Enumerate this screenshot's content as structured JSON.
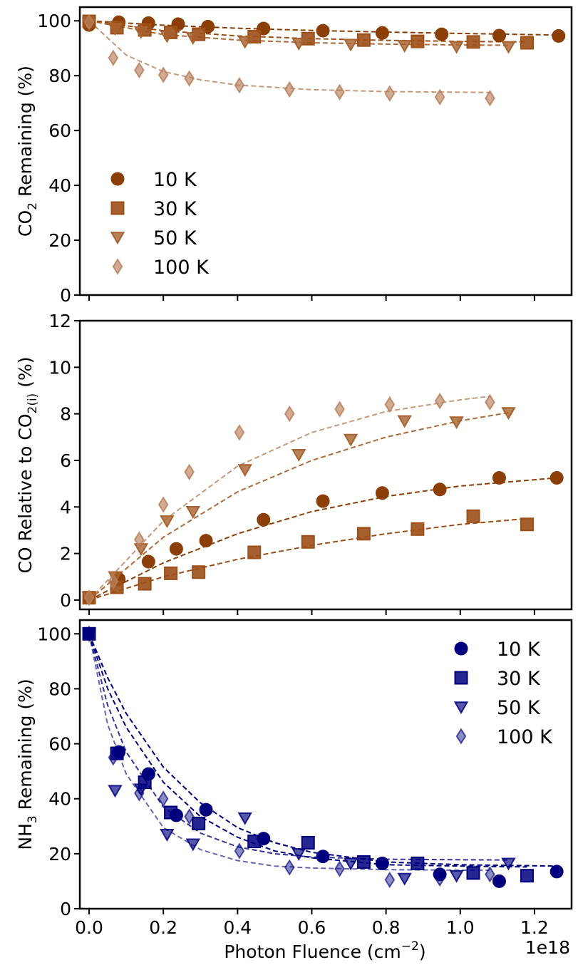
{
  "figure": {
    "shared_xlabel_prefix": "Photon Fluence (cm",
    "shared_xlabel_sup": "−2",
    "shared_xlabel_suffix": ")",
    "x_offset_label": "1e18"
  },
  "chart_data": [
    {
      "type": "scatter",
      "id": "co2",
      "ylabel_main": "CO",
      "ylabel_sub": "2",
      "ylabel_rest": " Remaining (%)",
      "xlim": [
        -0.025,
        1.3
      ],
      "ylim": [
        0,
        105
      ],
      "xticks": [
        0.0,
        0.2,
        0.4,
        0.6,
        0.8,
        1.0,
        1.2
      ],
      "yticks": [
        0,
        20,
        40,
        60,
        80,
        100
      ],
      "x_scale": "1e18",
      "legend_position": "lower-left",
      "series": [
        {
          "name": "10 K",
          "marker": "circle",
          "color": "#8b3f07",
          "opacity": 1.0,
          "x": [
            0.0,
            0.08,
            0.16,
            0.24,
            0.32,
            0.47,
            0.63,
            0.79,
            0.95,
            1.105,
            1.265
          ],
          "y": [
            98.5,
            99.5,
            99.2,
            98.8,
            97.9,
            97.2,
            96.4,
            95.6,
            95.1,
            94.6,
            94.5
          ],
          "fit": [
            [
              0.0,
              100.0
            ],
            [
              0.2,
              98.4
            ],
            [
              0.4,
              97.3
            ],
            [
              0.6,
              96.5
            ],
            [
              0.8,
              95.9
            ],
            [
              1.0,
              95.4
            ],
            [
              1.265,
              94.8
            ]
          ]
        },
        {
          "name": "30 K",
          "marker": "square",
          "color": "#9c4f18",
          "opacity": 0.9,
          "x": [
            0.0,
            0.075,
            0.15,
            0.22,
            0.295,
            0.445,
            0.59,
            0.74,
            0.885,
            1.035,
            1.18
          ],
          "y": [
            99.8,
            97.5,
            96.7,
            95.8,
            95.1,
            94.2,
            93.5,
            93.0,
            92.5,
            92.3,
            92.0
          ],
          "fit": [
            [
              0.0,
              100.0
            ],
            [
              0.2,
              96.4
            ],
            [
              0.4,
              94.5
            ],
            [
              0.6,
              93.5
            ],
            [
              0.8,
              92.9
            ],
            [
              1.0,
              92.5
            ],
            [
              1.18,
              92.3
            ]
          ]
        },
        {
          "name": "50 K",
          "marker": "triangle-down",
          "color": "#a8622e",
          "opacity": 0.8,
          "x": [
            0.0,
            0.07,
            0.14,
            0.21,
            0.28,
            0.42,
            0.565,
            0.705,
            0.85,
            0.99,
            1.13
          ],
          "y": [
            99.0,
            97.2,
            96.0,
            94.5,
            93.8,
            92.4,
            91.8,
            91.4,
            91.0,
            90.6,
            90.6
          ],
          "fit": [
            [
              0.0,
              100.0
            ],
            [
              0.2,
              95.0
            ],
            [
              0.4,
              93.0
            ],
            [
              0.6,
              92.0
            ],
            [
              0.8,
              91.5
            ],
            [
              1.0,
              91.2
            ],
            [
              1.13,
              91.1
            ]
          ]
        },
        {
          "name": "100 K",
          "marker": "diamond",
          "color": "#b87f5a",
          "opacity": 0.65,
          "x": [
            0.0,
            0.065,
            0.135,
            0.2,
            0.27,
            0.405,
            0.54,
            0.675,
            0.81,
            0.945,
            1.08
          ],
          "y": [
            99.5,
            86.5,
            82.0,
            80.3,
            79.0,
            76.5,
            75.0,
            74.0,
            73.5,
            72.2,
            71.8
          ],
          "fit": [
            [
              0.0,
              100.0
            ],
            [
              0.1,
              87.5
            ],
            [
              0.2,
              81.5
            ],
            [
              0.3,
              78.5
            ],
            [
              0.4,
              76.6
            ],
            [
              0.6,
              74.9
            ],
            [
              0.8,
              74.2
            ],
            [
              1.08,
              73.9
            ]
          ]
        }
      ]
    },
    {
      "type": "scatter",
      "id": "co",
      "ylabel_main": "CO Relative to CO",
      "ylabel_sub": "2(i)",
      "ylabel_rest": " (%)",
      "xlim": [
        -0.025,
        1.3
      ],
      "ylim": [
        -0.4,
        12
      ],
      "xticks": [
        0.0,
        0.2,
        0.4,
        0.6,
        0.8,
        1.0,
        1.2
      ],
      "yticks": [
        0,
        2,
        4,
        6,
        8,
        10,
        12
      ],
      "x_scale": "1e18",
      "legend_position": "none",
      "series": [
        {
          "name": "10 K",
          "marker": "circle",
          "color": "#8b3f07",
          "opacity": 1.0,
          "x": [
            0.0,
            0.08,
            0.16,
            0.235,
            0.315,
            0.47,
            0.63,
            0.79,
            0.945,
            1.105,
            1.26
          ],
          "y": [
            0.1,
            0.9,
            1.65,
            2.2,
            2.55,
            3.45,
            4.25,
            4.6,
            4.75,
            5.25,
            5.25
          ],
          "fit": [
            [
              0.0,
              0.0
            ],
            [
              0.2,
              1.6
            ],
            [
              0.4,
              2.85
            ],
            [
              0.6,
              3.8
            ],
            [
              0.8,
              4.45
            ],
            [
              1.0,
              4.9
            ],
            [
              1.26,
              5.25
            ]
          ]
        },
        {
          "name": "30 K",
          "marker": "square",
          "color": "#9c4f18",
          "opacity": 0.9,
          "x": [
            0.0,
            0.075,
            0.15,
            0.22,
            0.295,
            0.445,
            0.59,
            0.74,
            0.885,
            1.035,
            1.18
          ],
          "y": [
            0.1,
            0.55,
            0.7,
            1.15,
            1.2,
            2.05,
            2.5,
            2.85,
            3.05,
            3.6,
            3.25
          ],
          "fit": [
            [
              0.0,
              0.0
            ],
            [
              0.2,
              1.0
            ],
            [
              0.4,
              1.75
            ],
            [
              0.6,
              2.35
            ],
            [
              0.8,
              2.85
            ],
            [
              1.0,
              3.25
            ],
            [
              1.18,
              3.5
            ]
          ]
        },
        {
          "name": "50 K",
          "marker": "triangle-down",
          "color": "#a8622e",
          "opacity": 0.8,
          "x": [
            0.0,
            0.07,
            0.14,
            0.21,
            0.28,
            0.42,
            0.565,
            0.705,
            0.85,
            0.99,
            1.13
          ],
          "y": [
            0.1,
            1.0,
            2.2,
            3.4,
            3.8,
            5.6,
            6.25,
            6.9,
            7.7,
            7.65,
            8.05
          ],
          "fit": [
            [
              0.0,
              0.0
            ],
            [
              0.2,
              2.7
            ],
            [
              0.4,
              4.65
            ],
            [
              0.6,
              6.0
            ],
            [
              0.8,
              7.0
            ],
            [
              1.0,
              7.7
            ],
            [
              1.13,
              8.05
            ]
          ]
        },
        {
          "name": "100 K",
          "marker": "diamond",
          "color": "#b87f5a",
          "opacity": 0.65,
          "x": [
            0.0,
            0.065,
            0.135,
            0.2,
            0.27,
            0.405,
            0.54,
            0.675,
            0.81,
            0.945,
            1.08
          ],
          "y": [
            0.1,
            0.8,
            2.6,
            4.1,
            5.5,
            7.2,
            8.0,
            8.2,
            8.4,
            8.55,
            8.5
          ],
          "fit": [
            [
              0.0,
              0.0
            ],
            [
              0.2,
              3.4
            ],
            [
              0.4,
              5.75
            ],
            [
              0.6,
              7.2
            ],
            [
              0.8,
              8.1
            ],
            [
              1.0,
              8.6
            ],
            [
              1.08,
              8.75
            ]
          ]
        }
      ]
    },
    {
      "type": "scatter",
      "id": "nh3",
      "ylabel_main": "NH",
      "ylabel_sub": "3",
      "ylabel_rest": " Remaining (%)",
      "xlim": [
        -0.025,
        1.3
      ],
      "ylim": [
        0,
        105
      ],
      "xticks": [
        0.0,
        0.2,
        0.4,
        0.6,
        0.8,
        1.0,
        1.2
      ],
      "yticks": [
        0,
        20,
        40,
        60,
        80,
        100
      ],
      "x_scale": "1e18",
      "legend_position": "upper-right",
      "series": [
        {
          "name": "10 K",
          "marker": "circle",
          "color": "#00007f",
          "opacity": 1.0,
          "x": [
            0.0,
            0.08,
            0.16,
            0.235,
            0.315,
            0.47,
            0.63,
            0.79,
            0.945,
            1.105,
            1.26
          ],
          "y": [
            100,
            57,
            49,
            34,
            36,
            25.5,
            19,
            16.5,
            12.5,
            10,
            13.5
          ],
          "fit": [
            [
              0.0,
              100
            ],
            [
              0.05,
              84
            ],
            [
              0.1,
              71
            ],
            [
              0.2,
              51.5
            ],
            [
              0.3,
              38.5
            ],
            [
              0.4,
              29.5
            ],
            [
              0.5,
              24
            ],
            [
              0.6,
              20.5
            ],
            [
              0.8,
              17
            ],
            [
              1.0,
              16
            ],
            [
              1.26,
              15.5
            ]
          ]
        },
        {
          "name": "30 K",
          "marker": "square",
          "color": "#00007f",
          "opacity": 0.85,
          "x": [
            0.0,
            0.075,
            0.15,
            0.22,
            0.295,
            0.445,
            0.59,
            0.74,
            0.885,
            1.035,
            1.18
          ],
          "y": [
            100,
            56.5,
            46,
            35,
            31,
            24.5,
            24,
            17,
            16.5,
            13,
            12
          ],
          "fit": [
            [
              0.0,
              100
            ],
            [
              0.05,
              80
            ],
            [
              0.1,
              66
            ],
            [
              0.2,
              46
            ],
            [
              0.3,
              33.5
            ],
            [
              0.4,
              26
            ],
            [
              0.5,
              21
            ],
            [
              0.6,
              18.5
            ],
            [
              0.8,
              16
            ],
            [
              1.0,
              15.5
            ],
            [
              1.18,
              15.2
            ]
          ]
        },
        {
          "name": "50 K",
          "marker": "triangle-down",
          "color": "#00007f",
          "opacity": 0.65,
          "x": [
            0.0,
            0.07,
            0.14,
            0.21,
            0.28,
            0.42,
            0.565,
            0.705,
            0.85,
            0.99,
            1.13
          ],
          "y": [
            100,
            43,
            43.5,
            27,
            23.5,
            33,
            20,
            16.5,
            11,
            12,
            16.5
          ],
          "fit": [
            [
              0.0,
              100
            ],
            [
              0.05,
              74
            ],
            [
              0.1,
              57
            ],
            [
              0.2,
              37
            ],
            [
              0.3,
              27.5
            ],
            [
              0.4,
              22.5
            ],
            [
              0.5,
              20
            ],
            [
              0.6,
              18.8
            ],
            [
              0.8,
              18
            ],
            [
              1.0,
              17.8
            ],
            [
              1.13,
              17.7
            ]
          ]
        },
        {
          "name": "100 K",
          "marker": "diamond",
          "color": "#00007f",
          "opacity": 0.45,
          "x": [
            0.0,
            0.065,
            0.135,
            0.2,
            0.27,
            0.405,
            0.54,
            0.675,
            0.81,
            0.945,
            1.08
          ],
          "y": [
            100,
            55,
            42,
            40,
            33.5,
            21,
            15,
            14.5,
            10.5,
            11,
            12.5
          ],
          "fit": [
            [
              0.0,
              100
            ],
            [
              0.05,
              67
            ],
            [
              0.1,
              49
            ],
            [
              0.2,
              29.5
            ],
            [
              0.3,
              21.5
            ],
            [
              0.4,
              17.5
            ],
            [
              0.5,
              15.5
            ],
            [
              0.6,
              14.8
            ],
            [
              0.8,
              14.2
            ],
            [
              1.0,
              14.0
            ],
            [
              1.08,
              14.0
            ]
          ]
        }
      ]
    }
  ]
}
